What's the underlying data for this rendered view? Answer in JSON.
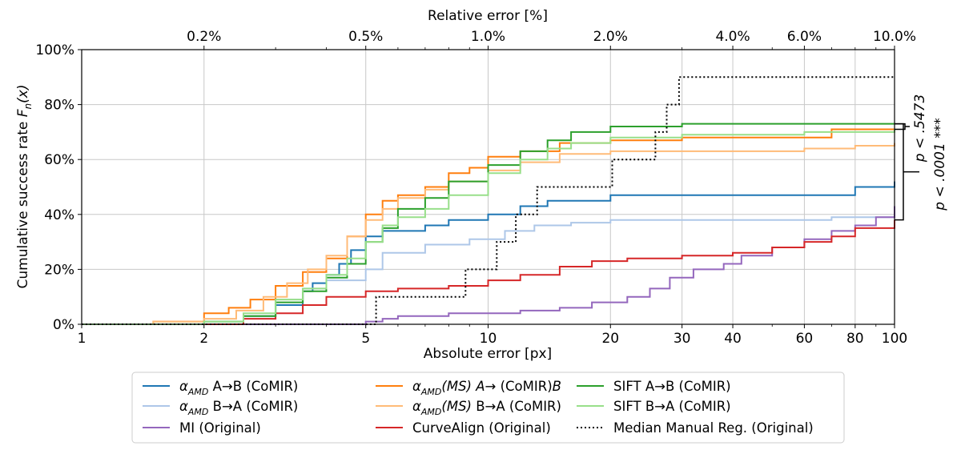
{
  "chart_data": {
    "type": "line",
    "title": "",
    "xlabel": "Absolute error [px]",
    "ylabel": "Cumulative success rate",
    "ylabel_math": {
      "main": "F",
      "sub": "n",
      "arg": "(x)"
    },
    "top_xlabel": "Relative error [%]",
    "x_scale": "log",
    "xlim": [
      1,
      100
    ],
    "ylim": [
      0,
      100
    ],
    "grid": true,
    "x_tick_labels": [
      "1",
      "2",
      "5",
      "10",
      "20",
      "30",
      "40",
      "60",
      "80",
      "100"
    ],
    "y_tick_labels": [
      "0%",
      "20%",
      "40%",
      "60%",
      "80%",
      "100%"
    ],
    "top_tick_labels": [
      "0.2%",
      "0.5%",
      "1.0%",
      "2.0%",
      "4.0%",
      "6.0%",
      "10.0%"
    ],
    "significance": [
      {
        "label": "p < .5473",
        "stars": "",
        "between": [
          73,
          71
        ]
      },
      {
        "label": "p < .0001",
        "stars": "***",
        "between": [
          73,
          38
        ]
      }
    ],
    "legend_position": "bottom",
    "series": [
      {
        "name": "A→B (CoMIR)",
        "prefix": "α",
        "sub": "AMD",
        "mod": "",
        "color": "#1f77b4",
        "dash": "",
        "points": [
          [
            1,
            0
          ],
          [
            1.6,
            0
          ],
          [
            2,
            1
          ],
          [
            2.5,
            3
          ],
          [
            3,
            7
          ],
          [
            3.5,
            12
          ],
          [
            3.7,
            15
          ],
          [
            4,
            18
          ],
          [
            4.3,
            22
          ],
          [
            4.6,
            27
          ],
          [
            5,
            32
          ],
          [
            5.5,
            34
          ],
          [
            7,
            36
          ],
          [
            8,
            38
          ],
          [
            10,
            40
          ],
          [
            12,
            43
          ],
          [
            14,
            45
          ],
          [
            20,
            47
          ],
          [
            30,
            47
          ],
          [
            60,
            47
          ],
          [
            80,
            50
          ],
          [
            100,
            52
          ]
        ]
      },
      {
        "name": "B→A (CoMIR)",
        "prefix": "α",
        "sub": "AMD",
        "mod": "",
        "color": "#aec7e8",
        "dash": "",
        "points": [
          [
            1,
            0
          ],
          [
            1.6,
            0
          ],
          [
            2,
            1
          ],
          [
            2.5,
            3
          ],
          [
            3,
            9
          ],
          [
            3.5,
            13
          ],
          [
            4,
            16
          ],
          [
            5,
            20
          ],
          [
            5.5,
            26
          ],
          [
            7,
            29
          ],
          [
            9,
            31
          ],
          [
            11,
            34
          ],
          [
            13,
            36
          ],
          [
            16,
            37
          ],
          [
            20,
            38
          ],
          [
            40,
            38
          ],
          [
            70,
            39
          ],
          [
            100,
            43
          ]
        ]
      },
      {
        "name": "MI (Original)",
        "prefix": "",
        "sub": "",
        "mod": "",
        "color": "#9467bd",
        "dash": "",
        "points": [
          [
            1,
            0
          ],
          [
            4,
            0
          ],
          [
            5,
            1
          ],
          [
            5.5,
            2
          ],
          [
            6,
            3
          ],
          [
            8,
            4
          ],
          [
            12,
            5
          ],
          [
            15,
            6
          ],
          [
            18,
            8
          ],
          [
            22,
            10
          ],
          [
            25,
            13
          ],
          [
            28,
            17
          ],
          [
            32,
            20
          ],
          [
            38,
            22
          ],
          [
            42,
            25
          ],
          [
            50,
            28
          ],
          [
            60,
            31
          ],
          [
            70,
            34
          ],
          [
            80,
            36
          ],
          [
            90,
            39
          ],
          [
            100,
            43
          ]
        ]
      },
      {
        "name": "→ (CoMIR)",
        "prefix": "α",
        "sub": "AMD",
        "mod": "(MS) A",
        "mod2": "B",
        "color": "#ff7f0e",
        "dash": "",
        "points": [
          [
            1,
            0
          ],
          [
            1.5,
            1
          ],
          [
            2,
            4
          ],
          [
            2.3,
            6
          ],
          [
            2.6,
            9
          ],
          [
            3,
            14
          ],
          [
            3.5,
            19
          ],
          [
            4,
            24
          ],
          [
            4.5,
            32
          ],
          [
            5,
            40
          ],
          [
            5.5,
            45
          ],
          [
            6,
            47
          ],
          [
            7,
            50
          ],
          [
            8,
            55
          ],
          [
            9,
            57
          ],
          [
            10,
            61
          ],
          [
            12,
            63
          ],
          [
            15,
            66
          ],
          [
            20,
            67
          ],
          [
            30,
            68
          ],
          [
            60,
            68
          ],
          [
            70,
            71
          ],
          [
            100,
            71
          ]
        ]
      },
      {
        "name": "B→A (CoMIR)",
        "prefix": "α",
        "sub": "AMD",
        "mod": "(MS)",
        "color": "#ffbb78",
        "dash": "",
        "points": [
          [
            1,
            0
          ],
          [
            1.5,
            1
          ],
          [
            2,
            2
          ],
          [
            2.4,
            5
          ],
          [
            2.8,
            10
          ],
          [
            3.2,
            15
          ],
          [
            3.6,
            20
          ],
          [
            4,
            25
          ],
          [
            4.5,
            32
          ],
          [
            5,
            38
          ],
          [
            5.5,
            42
          ],
          [
            6,
            46
          ],
          [
            7,
            49
          ],
          [
            8,
            52
          ],
          [
            10,
            56
          ],
          [
            12,
            59
          ],
          [
            15,
            62
          ],
          [
            20,
            63
          ],
          [
            30,
            63
          ],
          [
            60,
            64
          ],
          [
            80,
            65
          ],
          [
            100,
            66
          ]
        ]
      },
      {
        "name": "CurveAlign (Original)",
        "prefix": "",
        "sub": "",
        "mod": "",
        "color": "#d62728",
        "dash": "",
        "points": [
          [
            1,
            0
          ],
          [
            2,
            0
          ],
          [
            2.5,
            2
          ],
          [
            3,
            4
          ],
          [
            3.5,
            7
          ],
          [
            4,
            10
          ],
          [
            5,
            12
          ],
          [
            6,
            13
          ],
          [
            8,
            14
          ],
          [
            10,
            16
          ],
          [
            12,
            18
          ],
          [
            15,
            21
          ],
          [
            18,
            23
          ],
          [
            22,
            24
          ],
          [
            30,
            25
          ],
          [
            40,
            26
          ],
          [
            50,
            28
          ],
          [
            60,
            30
          ],
          [
            70,
            32
          ],
          [
            80,
            35
          ],
          [
            100,
            38
          ]
        ]
      },
      {
        "name": "SIFT A→B (CoMIR)",
        "prefix": "",
        "sub": "",
        "mod": "",
        "color": "#2ca02c",
        "dash": "",
        "points": [
          [
            1,
            0
          ],
          [
            1.8,
            0
          ],
          [
            2,
            1
          ],
          [
            2.5,
            3
          ],
          [
            3,
            8
          ],
          [
            3.5,
            12
          ],
          [
            4,
            17
          ],
          [
            4.5,
            22
          ],
          [
            5,
            30
          ],
          [
            5.5,
            35
          ],
          [
            6,
            42
          ],
          [
            7,
            46
          ],
          [
            8,
            52
          ],
          [
            10,
            58
          ],
          [
            12,
            63
          ],
          [
            14,
            67
          ],
          [
            16,
            70
          ],
          [
            20,
            72
          ],
          [
            30,
            73
          ],
          [
            100,
            73
          ]
        ]
      },
      {
        "name": "SIFT B→A (CoMIR)",
        "prefix": "",
        "sub": "",
        "mod": "",
        "color": "#98df8a",
        "dash": "",
        "points": [
          [
            1,
            0
          ],
          [
            1.8,
            0
          ],
          [
            2,
            1
          ],
          [
            2.5,
            4
          ],
          [
            3,
            9
          ],
          [
            3.5,
            13
          ],
          [
            4,
            18
          ],
          [
            4.5,
            24
          ],
          [
            5,
            30
          ],
          [
            5.5,
            36
          ],
          [
            6,
            39
          ],
          [
            7,
            42
          ],
          [
            8,
            47
          ],
          [
            10,
            55
          ],
          [
            12,
            60
          ],
          [
            14,
            64
          ],
          [
            16,
            66
          ],
          [
            20,
            68
          ],
          [
            30,
            69
          ],
          [
            60,
            70
          ],
          [
            100,
            71
          ]
        ]
      },
      {
        "name": "Median Manual Reg. (Original)",
        "prefix": "",
        "sub": "",
        "mod": "",
        "color": "#000000",
        "dash": "2,3",
        "points": [
          [
            1,
            0
          ],
          [
            5.3,
            0
          ],
          [
            5.3,
            10
          ],
          [
            8.8,
            10
          ],
          [
            8.8,
            20
          ],
          [
            10.5,
            20
          ],
          [
            10.5,
            30
          ],
          [
            11.7,
            30
          ],
          [
            11.7,
            40
          ],
          [
            13.2,
            40
          ],
          [
            13.2,
            50
          ],
          [
            20.2,
            50
          ],
          [
            20.2,
            60
          ],
          [
            25.8,
            60
          ],
          [
            25.8,
            70
          ],
          [
            27.5,
            70
          ],
          [
            27.5,
            80
          ],
          [
            29.5,
            80
          ],
          [
            29.5,
            90
          ],
          [
            100,
            90
          ]
        ]
      }
    ]
  }
}
